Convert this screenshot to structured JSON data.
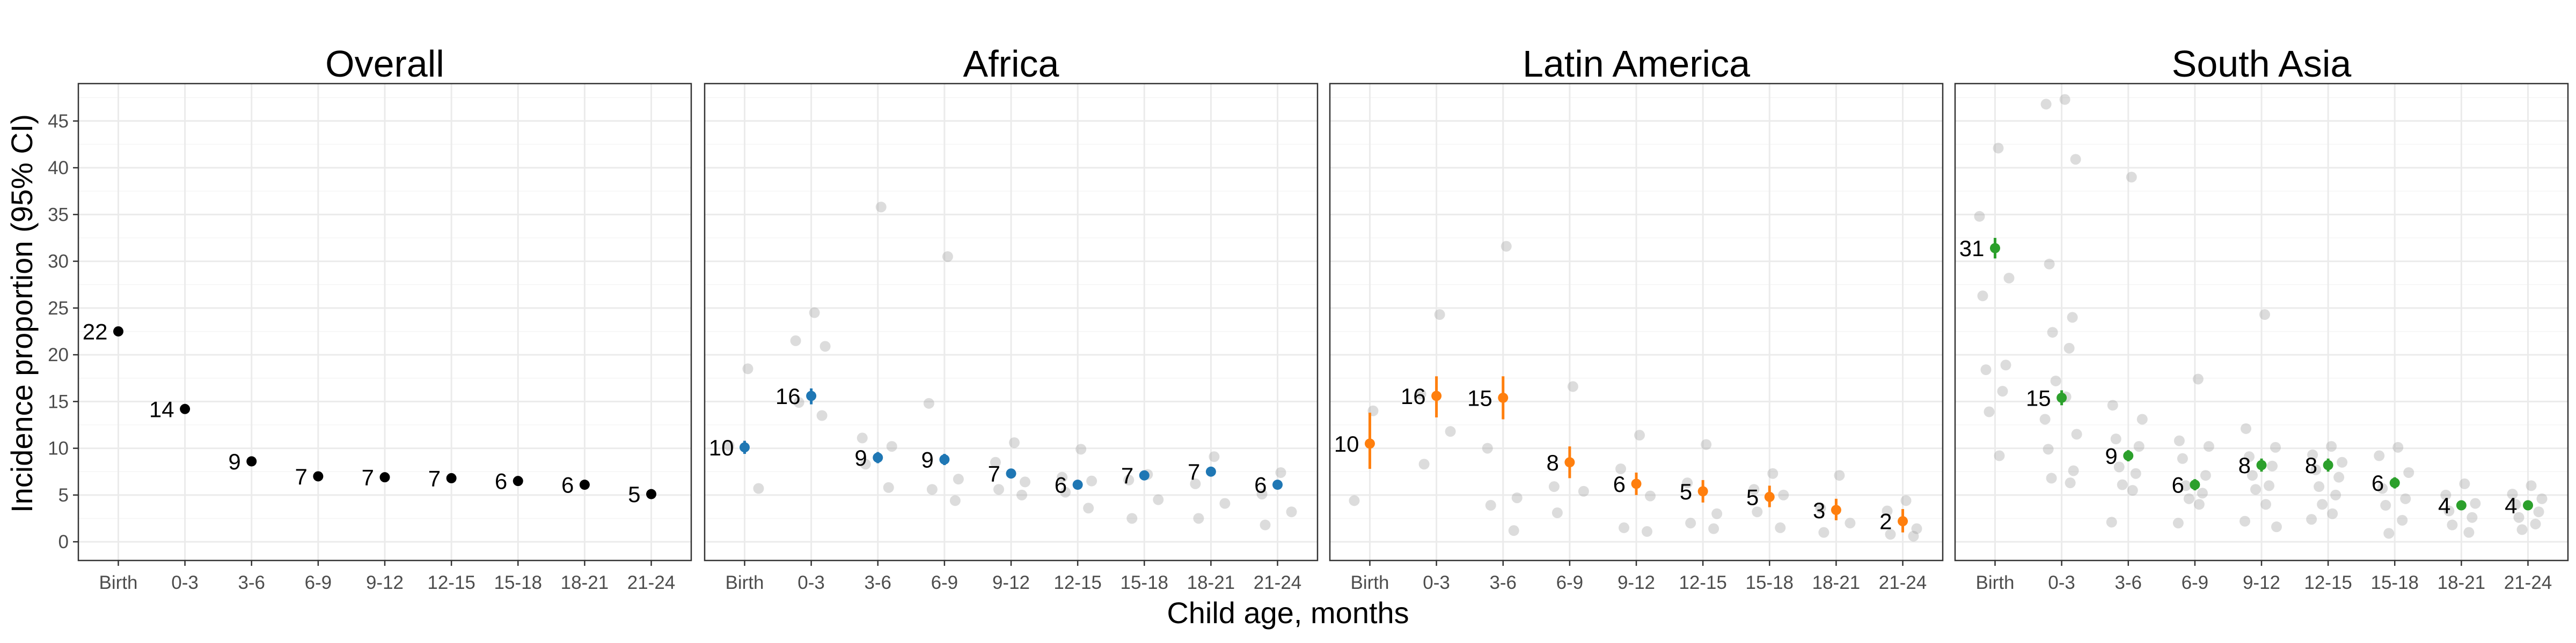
{
  "chart_data": [
    {
      "type": "scatter",
      "title": "Overall",
      "color": "#000000",
      "categories": [
        "Birth",
        "0-3",
        "3-6",
        "6-9",
        "9-12",
        "12-15",
        "15-18",
        "18-21",
        "21-24"
      ],
      "estimates": [
        22.5,
        14.2,
        8.6,
        7.0,
        6.9,
        6.8,
        6.5,
        6.1,
        5.1
      ],
      "labels": [
        "22",
        "14",
        "9",
        "7",
        "7",
        "7",
        "6",
        "6",
        "5"
      ],
      "ci_low": [
        22.5,
        14.2,
        8.6,
        7.0,
        6.9,
        6.8,
        6.5,
        6.1,
        5.1
      ],
      "ci_high": [
        22.5,
        14.2,
        8.6,
        7.0,
        6.9,
        6.8,
        6.5,
        6.1,
        5.1
      ],
      "study_points": [],
      "ylim": [
        -2,
        49
      ]
    },
    {
      "type": "scatter",
      "title": "Africa",
      "color": "#1f77b4",
      "categories": [
        "Birth",
        "0-3",
        "3-6",
        "6-9",
        "9-12",
        "12-15",
        "15-18",
        "18-21",
        "21-24"
      ],
      "estimates": [
        10.1,
        15.6,
        9.0,
        8.8,
        7.3,
        6.1,
        7.1,
        7.5,
        6.1
      ],
      "labels": [
        "10",
        "16",
        "9",
        "9",
        "7",
        "6",
        "7",
        "7",
        "6"
      ],
      "ci_low": [
        9.4,
        14.7,
        8.4,
        8.2,
        6.8,
        5.6,
        6.6,
        7.0,
        5.6
      ],
      "ci_high": [
        10.8,
        16.4,
        9.6,
        9.4,
        7.8,
        6.6,
        7.6,
        8.0,
        6.6
      ],
      "study_points": [
        [
          18.5,
          10.3,
          5.7
        ],
        [
          24.5,
          21.5,
          20.9,
          14.9,
          13.5
        ],
        [
          35.8,
          11.1,
          10.2,
          8.3,
          5.8
        ],
        [
          30.5,
          14.8,
          6.7,
          5.6,
          4.4
        ],
        [
          10.6,
          8.5,
          6.4,
          5.6,
          5.0
        ],
        [
          9.9,
          6.9,
          6.5,
          5.3,
          3.6
        ],
        [
          7.2,
          6.6,
          4.5,
          2.5
        ],
        [
          9.1,
          6.2,
          4.1,
          2.5
        ],
        [
          7.4,
          5.1,
          3.2,
          1.8
        ]
      ],
      "ylim": [
        -2,
        49
      ]
    },
    {
      "type": "scatter",
      "title": "Latin America",
      "color": "#ff7f0e",
      "categories": [
        "Birth",
        "0-3",
        "3-6",
        "6-9",
        "9-12",
        "12-15",
        "15-18",
        "18-21",
        "21-24"
      ],
      "estimates": [
        10.5,
        15.6,
        15.4,
        8.5,
        6.2,
        5.4,
        4.8,
        3.4,
        2.2
      ],
      "labels": [
        "10",
        "16",
        "15",
        "8",
        "6",
        "5",
        "5",
        "3",
        "2"
      ],
      "ci_low": [
        7.8,
        13.3,
        13.1,
        6.8,
        5.0,
        4.2,
        3.7,
        2.3,
        1.0
      ],
      "ci_high": [
        13.8,
        17.7,
        17.7,
        10.2,
        7.4,
        6.6,
        6.0,
        4.6,
        3.5
      ],
      "study_points": [
        [
          14.0,
          4.4
        ],
        [
          24.3,
          15.8,
          11.8,
          8.3
        ],
        [
          31.6,
          10.0,
          4.7,
          3.9,
          1.2
        ],
        [
          16.6,
          5.9,
          5.4,
          3.1
        ],
        [
          11.4,
          7.8,
          4.9,
          1.5,
          1.1
        ],
        [
          10.4,
          6.3,
          3.0,
          2.0,
          1.4
        ],
        [
          7.3,
          5.6,
          5.0,
          3.2,
          1.5
        ],
        [
          7.1,
          3.6,
          2.0,
          1.0
        ],
        [
          4.4,
          3.3,
          1.4,
          0.8,
          0.6
        ]
      ],
      "ylim": [
        -2,
        49
      ]
    },
    {
      "type": "scatter",
      "title": "South Asia",
      "color": "#2ca02c",
      "categories": [
        "Birth",
        "0-3",
        "3-6",
        "6-9",
        "9-12",
        "12-15",
        "15-18",
        "18-21",
        "21-24"
      ],
      "estimates": [
        31.4,
        15.4,
        9.2,
        6.1,
        8.2,
        8.2,
        6.3,
        3.9,
        3.9
      ],
      "labels": [
        "31",
        "15",
        "9",
        "6",
        "8",
        "8",
        "6",
        "4",
        "4"
      ],
      "ci_low": [
        30.3,
        14.6,
        8.6,
        5.5,
        7.5,
        7.5,
        5.7,
        3.4,
        3.4
      ],
      "ci_high": [
        32.5,
        16.2,
        9.8,
        6.7,
        8.9,
        8.9,
        6.9,
        4.4,
        4.4
      ],
      "study_points": [
        [
          42.1,
          34.8,
          28.2,
          26.3,
          18.9,
          18.4,
          16.1,
          13.9,
          9.2
        ],
        [
          47.3,
          46.8,
          40.9,
          29.7,
          24.0,
          22.4,
          20.7,
          17.2,
          15.5,
          13.1,
          11.5,
          9.9,
          7.6,
          6.8,
          6.3
        ],
        [
          39.0,
          14.6,
          13.1,
          11.0,
          10.2,
          8.0,
          7.3,
          6.1,
          5.5,
          2.1
        ],
        [
          17.4,
          10.8,
          10.2,
          8.9,
          7.1,
          6.0,
          5.2,
          4.6,
          4.0,
          2.0
        ],
        [
          24.3,
          12.1,
          10.1,
          9.1,
          8.1,
          7.1,
          6.0,
          5.6,
          4.0,
          2.2,
          1.6
        ],
        [
          10.2,
          9.3,
          8.5,
          7.7,
          6.9,
          5.9,
          5.0,
          4.0,
          3.0,
          2.4
        ],
        [
          10.1,
          9.2,
          7.4,
          5.7,
          4.6,
          3.9,
          2.3,
          0.9
        ],
        [
          6.2,
          5.0,
          4.1,
          3.3,
          2.6,
          1.8,
          1.0
        ],
        [
          6.0,
          5.1,
          4.6,
          4.0,
          3.2,
          2.6,
          1.9,
          1.3
        ]
      ],
      "ylim": [
        -2,
        49
      ]
    }
  ],
  "y_axis": {
    "label": "Incidence proportion (95% CI)",
    "ticks": [
      0,
      5,
      10,
      15,
      20,
      25,
      30,
      35,
      40,
      45
    ]
  },
  "x_axis": {
    "label": "Child age, months"
  },
  "grid": true
}
